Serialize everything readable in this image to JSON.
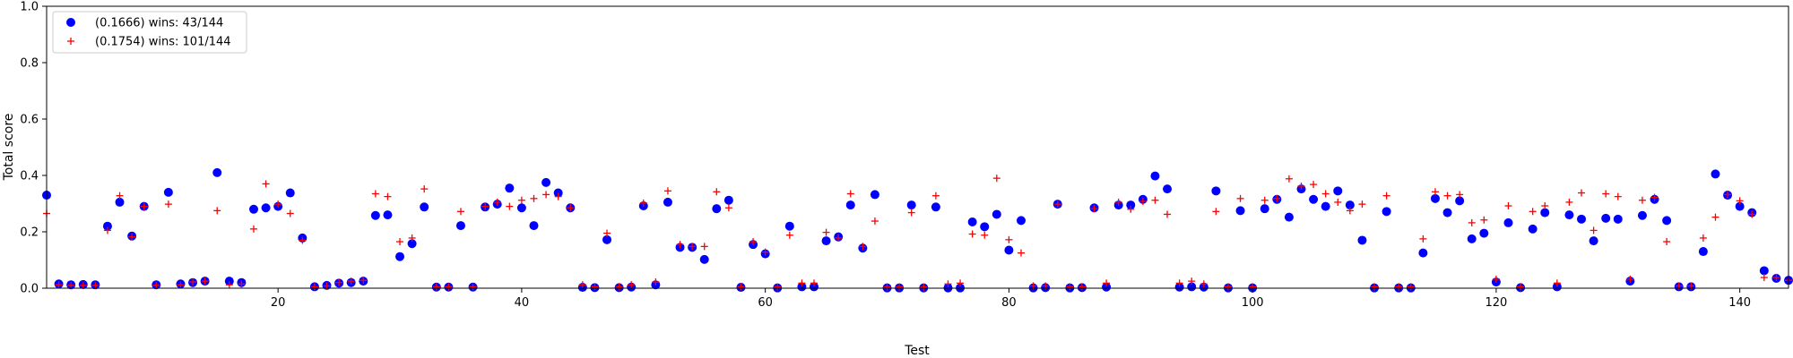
{
  "chart_data": {
    "type": "scatter",
    "xlabel": "Test",
    "ylabel": "Total score",
    "xlim": [
      1,
      144
    ],
    "ylim": [
      0,
      1.0
    ],
    "xticks": [
      20,
      40,
      60,
      80,
      100,
      120,
      140
    ],
    "yticks": [
      0.0,
      0.2,
      0.4,
      0.6,
      0.8,
      1.0
    ],
    "xtick_labels": [
      "20",
      "40",
      "60",
      "80",
      "100",
      "120",
      "140"
    ],
    "ytick_labels": [
      "0.0",
      "0.2",
      "0.4",
      "0.6",
      "0.8",
      "1.0"
    ],
    "grid": false,
    "legend_position": "top-left",
    "series": [
      {
        "name": "(0.1666) wins: 43/144",
        "marker": "circle",
        "color": "#0000ff",
        "values": [
          0.33,
          0.015,
          0.012,
          0.013,
          0.012,
          0.22,
          0.305,
          0.185,
          0.29,
          0.012,
          0.34,
          0.015,
          0.02,
          0.025,
          0.41,
          0.025,
          0.02,
          0.28,
          0.285,
          0.29,
          0.338,
          0.178,
          0.005,
          0.01,
          0.018,
          0.02,
          0.025,
          0.258,
          0.26,
          0.112,
          0.158,
          0.288,
          0.004,
          0.004,
          0.222,
          0.004,
          0.288,
          0.298,
          0.355,
          0.285,
          0.222,
          0.375,
          0.338,
          0.285,
          0.003,
          0.002,
          0.172,
          0.002,
          0.004,
          0.292,
          0.012,
          0.305,
          0.145,
          0.145,
          0.102,
          0.282,
          0.312,
          0.003,
          0.155,
          0.122,
          0.001,
          0.22,
          0.005,
          0.005,
          0.168,
          0.182,
          0.295,
          0.142,
          0.332,
          0.001,
          0.001,
          0.295,
          0.001,
          0.288,
          0.001,
          0.001,
          0.235,
          0.218,
          0.262,
          0.135,
          0.24,
          0.001,
          0.002,
          0.298,
          0.001,
          0.002,
          0.285,
          0.004,
          0.295,
          0.295,
          0.315,
          0.398,
          0.352,
          0.004,
          0.005,
          0.004,
          0.345,
          0.001,
          0.275,
          0.001,
          0.282,
          0.315,
          0.252,
          0.352,
          0.315,
          0.29,
          0.345,
          0.295,
          0.17,
          0.001,
          0.272,
          0.001,
          0.001,
          0.125,
          0.318,
          0.268,
          0.31,
          0.175,
          0.195,
          0.022,
          0.232,
          0.002,
          0.21,
          0.268,
          0.005,
          0.26,
          0.245,
          0.168,
          0.248,
          0.245,
          0.025,
          0.258,
          0.315,
          0.24,
          0.005,
          0.005,
          0.13,
          0.405,
          0.33,
          0.29,
          0.268,
          0.062,
          0.035,
          0.028
        ]
      },
      {
        "name": "(0.1754) wins: 101/144",
        "marker": "plus",
        "color": "#ff0000",
        "values": [
          0.265,
          0.012,
          0.01,
          0.01,
          0.01,
          0.205,
          0.328,
          0.182,
          0.29,
          0.01,
          0.298,
          0.012,
          0.022,
          0.025,
          0.275,
          0.012,
          0.015,
          0.21,
          0.37,
          0.298,
          0.265,
          0.17,
          0.005,
          0.008,
          0.02,
          0.025,
          0.028,
          0.335,
          0.325,
          0.165,
          0.178,
          0.352,
          0.005,
          0.005,
          0.272,
          0.005,
          0.29,
          0.305,
          0.29,
          0.312,
          0.318,
          0.332,
          0.325,
          0.285,
          0.012,
          0.005,
          0.195,
          0.005,
          0.012,
          0.302,
          0.022,
          0.345,
          0.155,
          0.148,
          0.148,
          0.342,
          0.285,
          0.005,
          0.165,
          0.128,
          0.004,
          0.188,
          0.018,
          0.018,
          0.198,
          0.178,
          0.335,
          0.148,
          0.238,
          0.004,
          0.004,
          0.268,
          0.004,
          0.328,
          0.015,
          0.018,
          0.192,
          0.188,
          0.39,
          0.172,
          0.125,
          0.008,
          0.008,
          0.298,
          0.005,
          0.005,
          0.282,
          0.018,
          0.305,
          0.28,
          0.308,
          0.312,
          0.262,
          0.018,
          0.025,
          0.015,
          0.272,
          0.005,
          0.318,
          0.005,
          0.312,
          0.318,
          0.388,
          0.362,
          0.368,
          0.335,
          0.305,
          0.275,
          0.298,
          0.005,
          0.328,
          0.005,
          0.005,
          0.175,
          0.342,
          0.328,
          0.332,
          0.232,
          0.242,
          0.032,
          0.292,
          0.005,
          0.272,
          0.292,
          0.018,
          0.305,
          0.338,
          0.205,
          0.335,
          0.325,
          0.032,
          0.312,
          0.322,
          0.165,
          0.008,
          0.008,
          0.178,
          0.252,
          0.332,
          0.31,
          0.262,
          0.038,
          0.038,
          0.028
        ]
      }
    ]
  }
}
